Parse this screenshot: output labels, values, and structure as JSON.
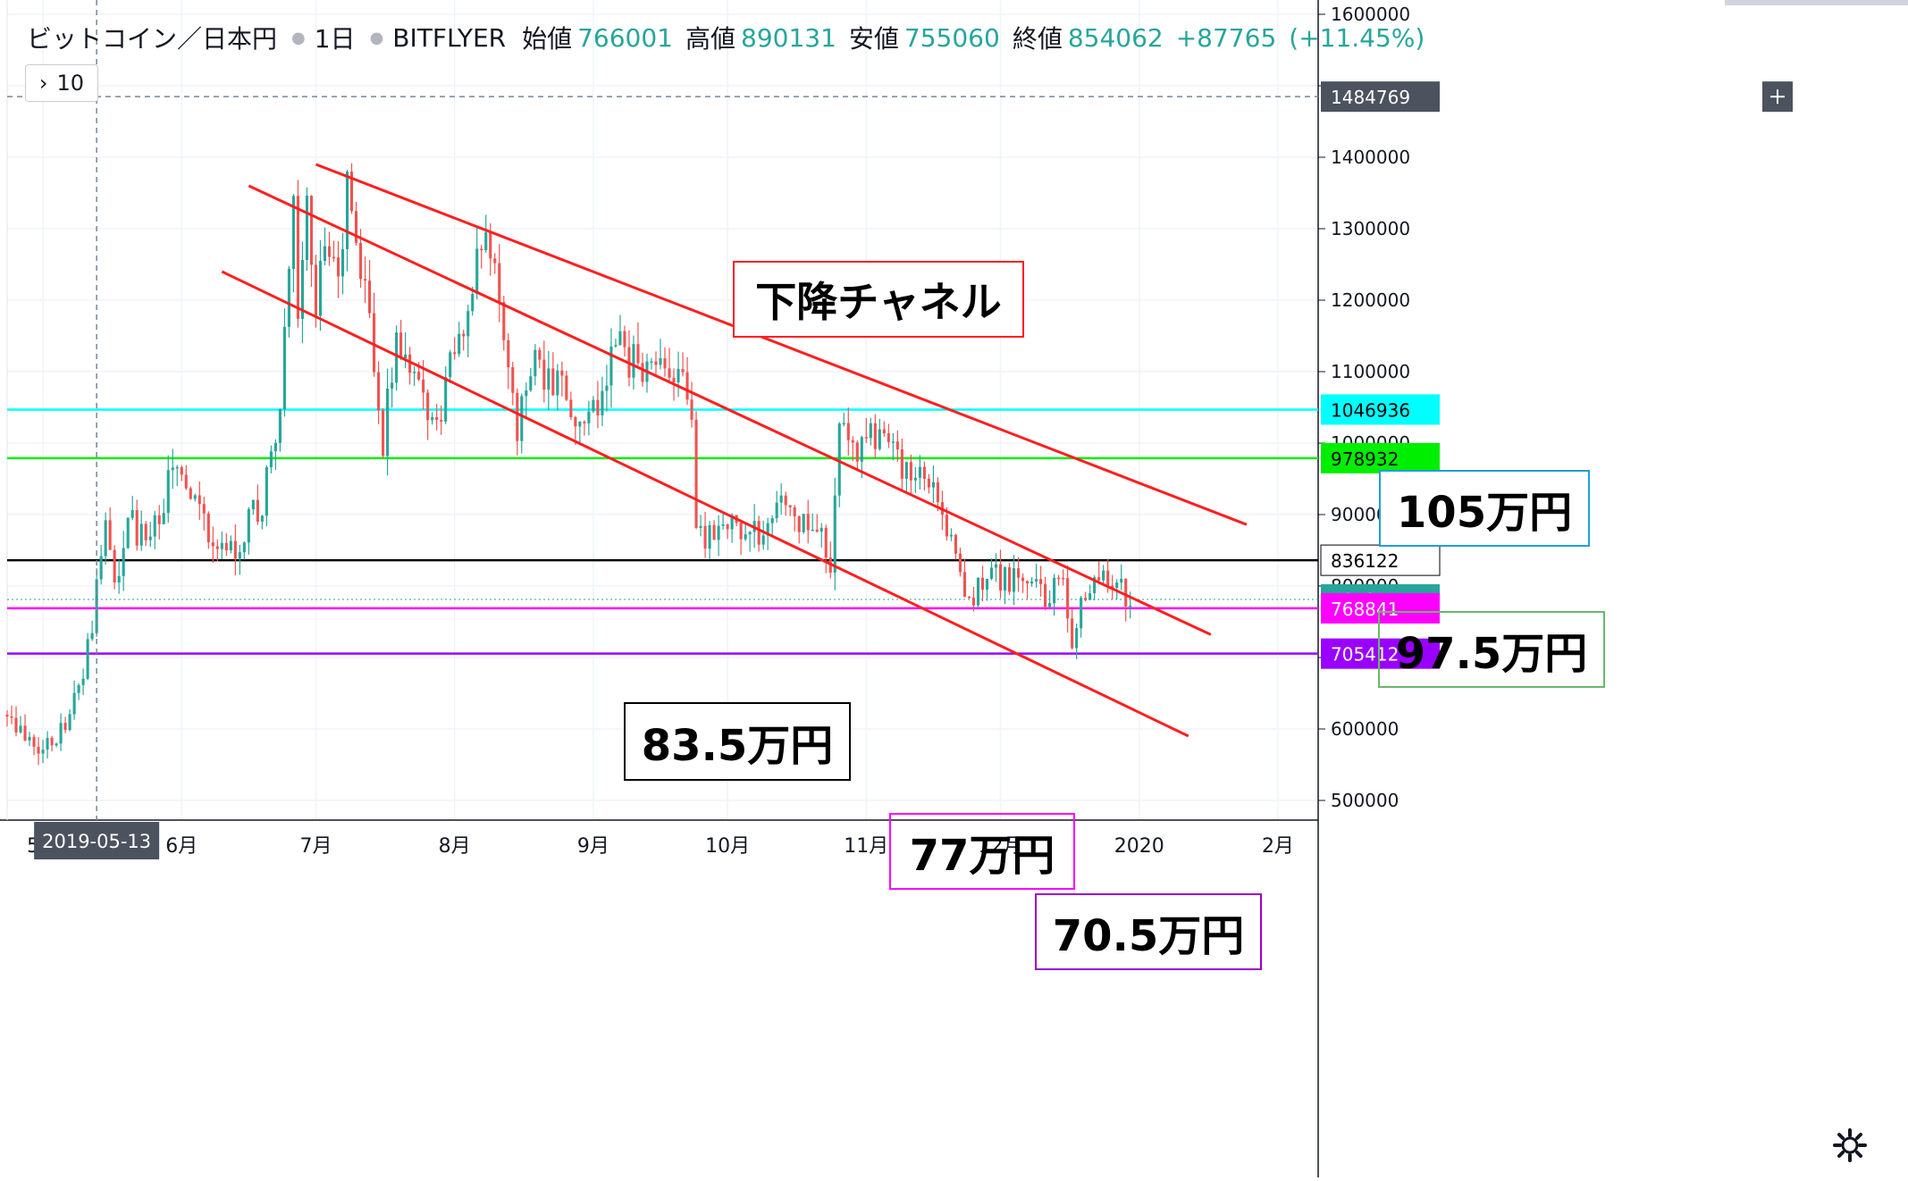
{
  "legend": {
    "symbol": "ビットコイン／日本円",
    "interval": "1日",
    "exchange": "BITFLYER",
    "open_label": "始値",
    "open": "766001",
    "high_label": "高値",
    "high": "890131",
    "low_label": "安値",
    "low": "755060",
    "close_label": "終値",
    "close": "854062",
    "change": "+87765",
    "change_pct": "(+11.45%)",
    "collapsed_count": "10"
  },
  "colors": {
    "up": "#26a69a",
    "down": "#ef5350",
    "channel": "#ff1f1f",
    "cyan_line": "#00ffff",
    "green_line": "#00ee00",
    "black_line": "#000000",
    "magenta_line": "#ff00ff",
    "purple_line": "#9900ff",
    "crosshair_tag_bg": "#4c525e",
    "last_price_bg": "#26a69a"
  },
  "annotations": [
    {
      "text": "下降チャネル",
      "border": "#ff1f1f",
      "id": "channel-label"
    },
    {
      "text": "105万円",
      "border": "#1ea0d8",
      "id": "label-105"
    },
    {
      "text": "97.5万円",
      "border": "#6ab86a",
      "id": "label-975"
    },
    {
      "text": "83.5万円",
      "border": "#000000",
      "id": "label-835"
    },
    {
      "text": "77万円",
      "border": "#ff00ff",
      "id": "label-77"
    },
    {
      "text": "70.5万円",
      "border": "#9900cc",
      "id": "label-705"
    }
  ],
  "crosshair": {
    "date": "2019-05-13",
    "price": "1484769"
  },
  "chart_data": {
    "type": "candlestick",
    "currency": "JPY",
    "x_range": [
      "2019-04-23",
      "2020-02-10"
    ],
    "ylim": [
      450000,
      1630000
    ],
    "y_ticks": [
      500000,
      600000,
      700000,
      800000,
      900000,
      1000000,
      1100000,
      1200000,
      1300000,
      1400000,
      1500000,
      1600000
    ],
    "y_tick_labels": [
      "500000",
      "600000",
      "",
      "800000",
      "900000",
      "1000000",
      "1100000",
      "1200000",
      "1300000",
      "1400000",
      "",
      "1600000"
    ],
    "x_ticks": [
      {
        "date": "2019-05-01",
        "label": "5月"
      },
      {
        "date": "2019-06-01",
        "label": "6月"
      },
      {
        "date": "2019-07-01",
        "label": "7月"
      },
      {
        "date": "2019-08-01",
        "label": "8月"
      },
      {
        "date": "2019-09-01",
        "label": "9月"
      },
      {
        "date": "2019-10-01",
        "label": "10月"
      },
      {
        "date": "2019-11-01",
        "label": "11月"
      },
      {
        "date": "2019-12-01",
        "label": "12月"
      },
      {
        "date": "2020-01-01",
        "label": "2020"
      },
      {
        "date": "2020-02-01",
        "label": "2月"
      }
    ],
    "horizontal_levels": [
      {
        "price": 1046936,
        "label": "1046936",
        "color": "#00ffff"
      },
      {
        "price": 978932,
        "label": "978932",
        "color": "#00ee00"
      },
      {
        "price": 836122,
        "label": "836122",
        "color": "#000000"
      },
      {
        "price": 781244,
        "label": "781244",
        "color": "#26a69a",
        "dotted": true
      },
      {
        "price": 768841,
        "label": "768841",
        "color": "#ff00ff"
      },
      {
        "price": 705412,
        "label": "705412",
        "color": "#9900ff"
      }
    ],
    "channel_lines": [
      {
        "start": [
          "2019-07-01",
          1390000
        ],
        "end": [
          "2020-01-25",
          886000
        ]
      },
      {
        "start": [
          "2019-06-16",
          1360000
        ],
        "end": [
          "2020-01-17",
          732000
        ]
      },
      {
        "start": [
          "2019-06-10",
          1240000
        ],
        "end": [
          "2020-01-12",
          590000
        ]
      }
    ],
    "series_anchors": [
      [
        "2019-04-23",
        620000
      ],
      [
        "2019-04-30",
        575000
      ],
      [
        "2019-05-06",
        600000
      ],
      [
        "2019-05-10",
        680000
      ],
      [
        "2019-05-13",
        790000
      ],
      [
        "2019-05-15",
        870000
      ],
      [
        "2019-05-17",
        810000
      ],
      [
        "2019-05-20",
        890000
      ],
      [
        "2019-05-25",
        860000
      ],
      [
        "2019-05-30",
        960000
      ],
      [
        "2019-06-03",
        920000
      ],
      [
        "2019-06-06",
        880000
      ],
      [
        "2019-06-10",
        840000
      ],
      [
        "2019-06-14",
        860000
      ],
      [
        "2019-06-19",
        920000
      ],
      [
        "2019-06-23",
        1050000
      ],
      [
        "2019-06-26",
        1320000
      ],
      [
        "2019-06-27",
        1180000
      ],
      [
        "2019-06-29",
        1330000
      ],
      [
        "2019-07-01",
        1200000
      ],
      [
        "2019-07-03",
        1270000
      ],
      [
        "2019-07-06",
        1230000
      ],
      [
        "2019-07-08",
        1350000
      ],
      [
        "2019-07-10",
        1280000
      ],
      [
        "2019-07-14",
        1130000
      ],
      [
        "2019-07-16",
        1000000
      ],
      [
        "2019-07-19",
        1150000
      ],
      [
        "2019-07-23",
        1080000
      ],
      [
        "2019-07-28",
        1020000
      ],
      [
        "2019-07-31",
        1100000
      ],
      [
        "2019-08-04",
        1200000
      ],
      [
        "2019-08-06",
        1270000
      ],
      [
        "2019-08-10",
        1250000
      ],
      [
        "2019-08-13",
        1120000
      ],
      [
        "2019-08-15",
        1030000
      ],
      [
        "2019-08-19",
        1130000
      ],
      [
        "2019-08-23",
        1080000
      ],
      [
        "2019-08-27",
        1060000
      ],
      [
        "2019-08-30",
        1000000
      ],
      [
        "2019-09-03",
        1080000
      ],
      [
        "2019-09-06",
        1130000
      ],
      [
        "2019-09-12",
        1110000
      ],
      [
        "2019-09-19",
        1110000
      ],
      [
        "2019-09-23",
        1060000
      ],
      [
        "2019-09-24",
        880000
      ],
      [
        "2019-09-27",
        870000
      ],
      [
        "2019-10-02",
        890000
      ],
      [
        "2019-10-07",
        870000
      ],
      [
        "2019-10-10",
        900000
      ],
      [
        "2019-10-14",
        930000
      ],
      [
        "2019-10-18",
        880000
      ],
      [
        "2019-10-22",
        880000
      ],
      [
        "2019-10-24",
        810000
      ],
      [
        "2019-10-26",
        1010000
      ],
      [
        "2019-10-29",
        1000000
      ],
      [
        "2019-11-02",
        1000000
      ],
      [
        "2019-11-06",
        1000000
      ],
      [
        "2019-11-09",
        960000
      ],
      [
        "2019-11-14",
        940000
      ],
      [
        "2019-11-18",
        900000
      ],
      [
        "2019-11-21",
        840000
      ],
      [
        "2019-11-23",
        780000
      ],
      [
        "2019-11-25",
        780000
      ],
      [
        "2019-11-28",
        830000
      ],
      [
        "2019-12-01",
        810000
      ],
      [
        "2019-12-05",
        810000
      ],
      [
        "2019-12-10",
        790000
      ],
      [
        "2019-12-15",
        790000
      ],
      [
        "2019-12-17",
        720000
      ],
      [
        "2019-12-19",
        790000
      ],
      [
        "2019-12-23",
        820000
      ],
      [
        "2019-12-27",
        790000
      ],
      [
        "2019-12-29",
        790000
      ],
      [
        "2019-12-31",
        781244
      ]
    ]
  },
  "settings_icon": "gear-icon"
}
